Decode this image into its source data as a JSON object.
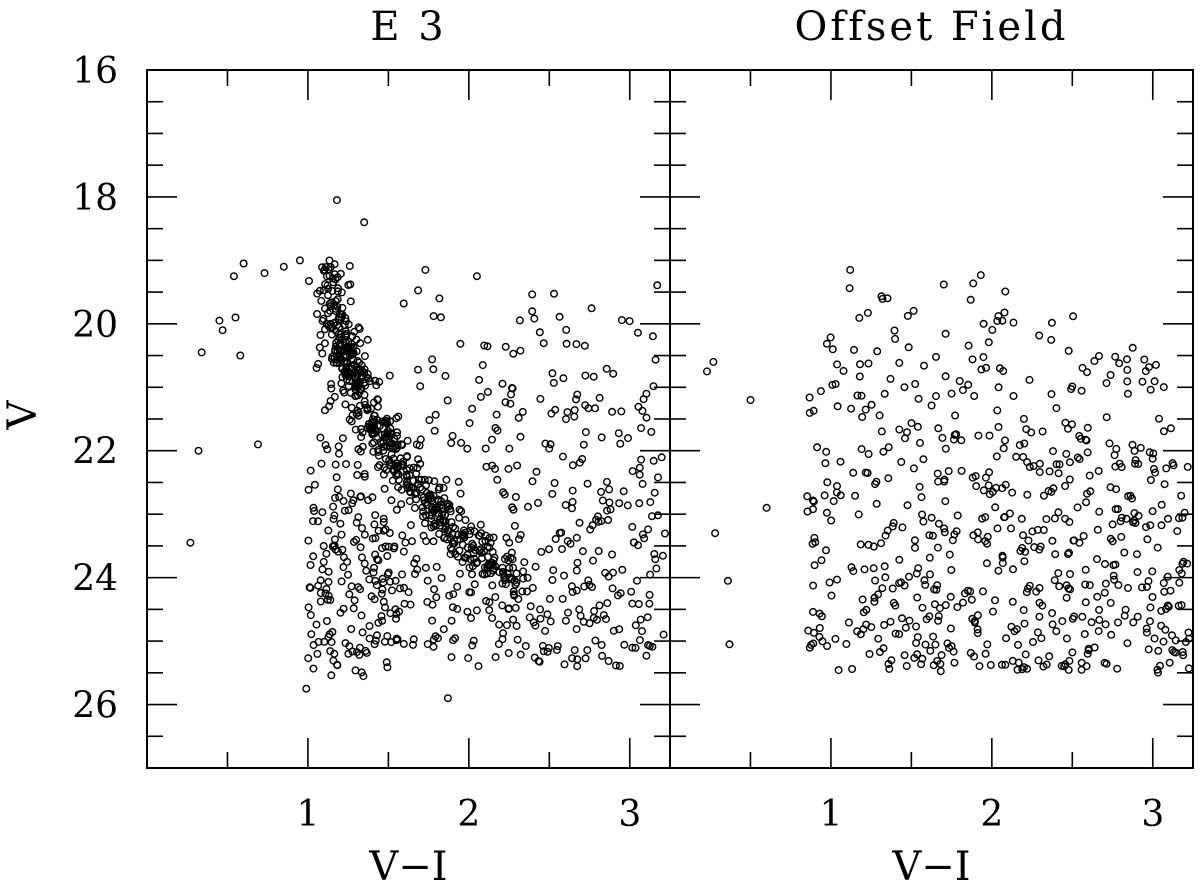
{
  "chart_data": [
    {
      "type": "scatter",
      "title": "E 3",
      "xlabel": "V−I",
      "ylabel": "V",
      "xlim": [
        0.0,
        3.25
      ],
      "ylim": [
        27.0,
        16.0
      ],
      "x_ticks": [
        1,
        2,
        3
      ],
      "y_ticks": [
        16,
        18,
        20,
        22,
        24,
        26
      ],
      "y_inverted": true,
      "marker": "open-circle",
      "points_note": "approximate reproduction of ~1100 star magnitudes; key features listed, bulk generated from these",
      "features": {
        "red_giant_branch": [
          [
            1.13,
            19.1
          ],
          [
            1.17,
            19.8
          ],
          [
            1.22,
            20.4
          ],
          [
            1.3,
            20.9
          ],
          [
            1.4,
            21.5
          ],
          [
            1.52,
            22.1
          ],
          [
            1.68,
            22.6
          ],
          [
            1.85,
            23.1
          ],
          [
            2.05,
            23.6
          ],
          [
            2.3,
            24.1
          ]
        ],
        "isolated_points": [
          [
            0.95,
            19.0
          ],
          [
            0.85,
            19.1
          ],
          [
            0.73,
            19.2
          ],
          [
            0.6,
            19.05
          ],
          [
            0.54,
            19.25
          ],
          [
            0.45,
            19.95
          ],
          [
            0.47,
            20.1
          ],
          [
            0.58,
            20.5
          ],
          [
            0.55,
            19.9
          ],
          [
            0.69,
            21.9
          ],
          [
            0.34,
            20.45
          ],
          [
            0.32,
            22.0
          ],
          [
            0.27,
            23.45
          ],
          [
            0.99,
            25.75
          ],
          [
            1.87,
            25.9
          ],
          [
            1.18,
            18.05
          ],
          [
            1.35,
            18.4
          ],
          [
            2.05,
            19.25
          ],
          [
            1.73,
            19.15
          ]
        ]
      },
      "point_count": 1100
    },
    {
      "type": "scatter",
      "title": "Offset Field",
      "xlabel": "V−I",
      "ylabel": "",
      "xlim": [
        0.0,
        3.25
      ],
      "ylim": [
        27.0,
        16.0
      ],
      "x_ticks": [
        1,
        2,
        3
      ],
      "y_ticks": [
        16,
        18,
        20,
        22,
        24,
        26
      ],
      "y_inverted": true,
      "marker": "open-circle",
      "features": {
        "isolated_points": [
          [
            0.23,
            20.75
          ],
          [
            0.27,
            20.6
          ],
          [
            0.28,
            23.3
          ],
          [
            0.36,
            24.05
          ],
          [
            0.37,
            25.05
          ],
          [
            0.5,
            21.2
          ],
          [
            0.6,
            22.9
          ],
          [
            1.12,
            19.15
          ]
        ]
      },
      "point_count": 650
    }
  ]
}
